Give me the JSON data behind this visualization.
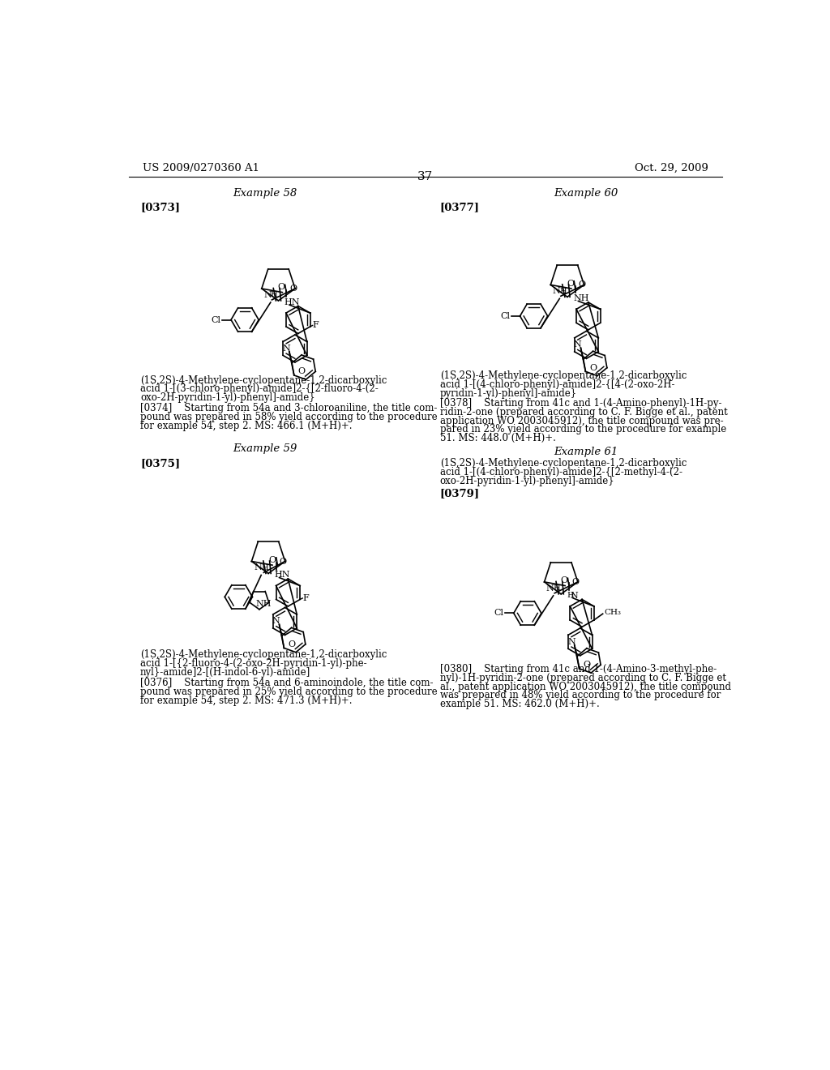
{
  "page_header_left": "US 2009/0270360 A1",
  "page_header_right": "Oct. 29, 2009",
  "page_number": "37",
  "ex58_title": "Example 58",
  "ex58_para_num": "[0373]",
  "ex58_caption": "(1S,2S)-4-Methylene-cyclopentane-1,2-dicarboxylic\nacid 1-[(3-chloro-phenyl)-amide]2-{[2-fluoro-4-(2-\noxo-2H-pyridin-1-yl)-phenyl]-amide}",
  "ex58_para": "[0374]    Starting from 54a and 3-chloroaniline, the title com-\npound was prepared in 58% yield according to the procedure\nfor example 54, step 2. MS: 466.1 (M+H)+.",
  "ex59_title": "Example 59",
  "ex59_para_num": "[0375]",
  "ex59_caption": "(1S,2S)-4-Methylene-cyclopentane-1,2-dicarboxylic\nacid 1-[{2-fluoro-4-(2-oxo-2H-pyridin-1-yl)-phe-\nnyl}-amide]2-[(H-indol-6-yl)-amide]",
  "ex59_para": "[0376]    Starting from 54a and 6-aminoindole, the title com-\npound was prepared in 25% yield according to the procedure\nfor example 54, step 2. MS: 471.3 (M+H)+.",
  "ex60_title": "Example 60",
  "ex60_para_num": "[0377]",
  "ex60_caption": "(1S,2S)-4-Methylene-cyclopentane-1,2-dicarboxylic\nacid 1-[(4-chloro-phenyl)-amide]2-{[4-(2-oxo-2H-\npyridin-1-yl)-phenyl]-amide}",
  "ex60_para_lines": [
    "[0378]    Starting from 41c and 1-(4-Amino-phenyl)-1H-py-",
    "ridin-2-one (prepared according to C. F. Bigge et al., patent",
    "application WO 2003045912), the title compound was pre-",
    "pared in 23% yield according to the procedure for example",
    "51. MS: 448.0 (M+H)+."
  ],
  "ex61_title": "Example 61",
  "ex61_para_num": "[0379]",
  "ex61_caption": "(1S,2S)-4-Methylene-cyclopentane-1,2-dicarboxylic\nacid 1-[(4-chloro-phenyl)-amide]2-{[2-methyl-4-(2-\noxo-2H-pyridin-1-yl)-phenyl]-amide}",
  "ex61_para_lines": [
    "[0380]    Starting from 41c and 1-(4-Amino-3-methyl-phe-",
    "nyl)-1H-pyridin-2-one (prepared according to C. F. Bigge et",
    "al., patent application WO 2003045912), the title compound",
    "was prepared in 48% yield according to the procedure for",
    "example 51. MS: 462.0 (M+H)+."
  ]
}
